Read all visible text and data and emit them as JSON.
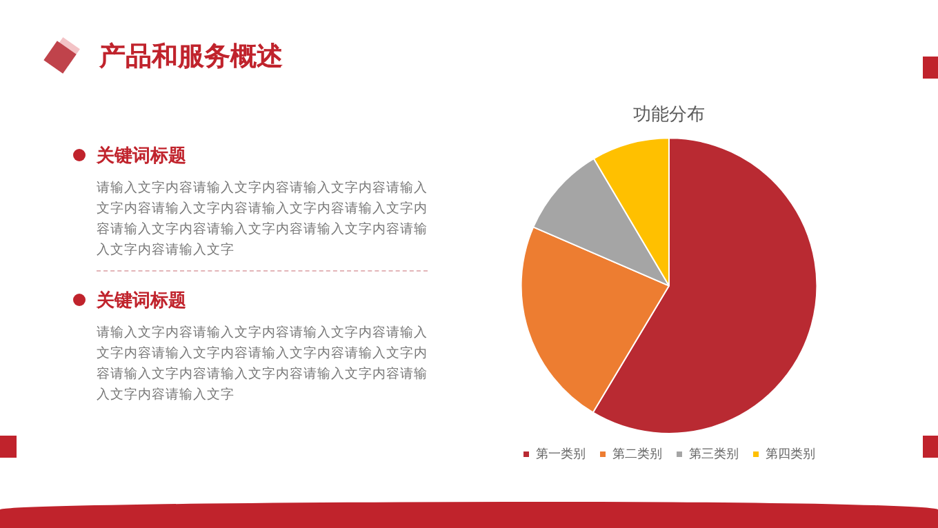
{
  "chart_data": {
    "type": "pie",
    "title": "功能分布",
    "categories": [
      "第一类别",
      "第二类别",
      "第三类别",
      "第四类别"
    ],
    "values": [
      58.6,
      22.9,
      10.0,
      8.5
    ],
    "colors": [
      "#b92a32",
      "#ed7d31",
      "#a5a5a5",
      "#ffc000"
    ],
    "legend": "bottom",
    "annotations": [
      "产品和服务概述",
      "关键词标题",
      "请输入文字内容请输入文字内容请输入文字内容请输入文字内容请输入文字内容请输入文字内容请输入文字内容请输入文字内容请输入文字内容请输入文字内容请输入文字内容请输入文字",
      "关键词标题",
      "请输入文字内容请输入文字内容请输入文字内容请输入文字内容请输入文字内容请输入文字内容请输入文字内容请输入文字内容请输入文字内容请输入文字内容请输入文字内容请输入文字"
    ]
  }
}
